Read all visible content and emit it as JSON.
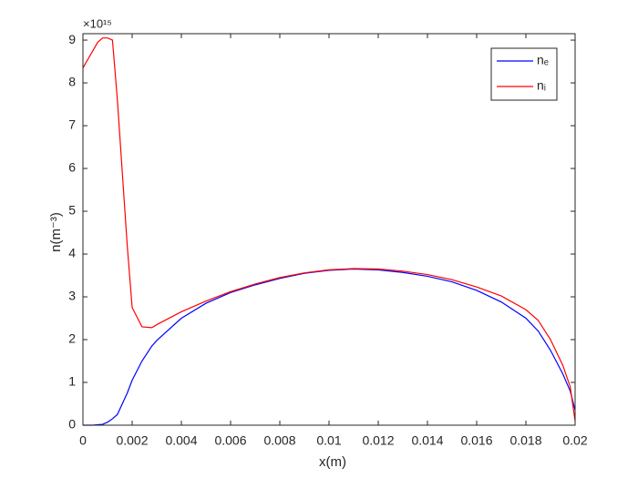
{
  "chart_data": {
    "type": "line",
    "xlabel": "x(m)",
    "ylabel": "n(m⁻³)",
    "y_multiplier": "×10¹⁵",
    "x": [
      0,
      0.0004,
      0.0006,
      0.0008,
      0.001,
      0.0012,
      0.0014,
      0.0018,
      0.002,
      0.0024,
      0.0028,
      0.003,
      0.004,
      0.005,
      0.006,
      0.007,
      0.008,
      0.009,
      0.01,
      0.011,
      0.012,
      0.013,
      0.014,
      0.015,
      0.016,
      0.017,
      0.018,
      0.0185,
      0.019,
      0.0195,
      0.0198,
      0.02
    ],
    "series": [
      {
        "name": "nₑ",
        "color": "#0000ff",
        "values": [
          0,
          0,
          0.01,
          0.02,
          0.07,
          0.15,
          0.25,
          0.75,
          1.05,
          1.5,
          1.85,
          1.98,
          2.5,
          2.85,
          3.1,
          3.28,
          3.43,
          3.55,
          3.62,
          3.65,
          3.63,
          3.57,
          3.48,
          3.35,
          3.15,
          2.88,
          2.5,
          2.2,
          1.75,
          1.2,
          0.8,
          0.35
        ]
      },
      {
        "name": "nᵢ",
        "color": "#ff0000",
        "values": [
          8.35,
          8.75,
          8.95,
          9.05,
          9.05,
          9.0,
          7.6,
          4.2,
          2.75,
          2.3,
          2.28,
          2.35,
          2.65,
          2.9,
          3.12,
          3.3,
          3.45,
          3.56,
          3.63,
          3.66,
          3.65,
          3.6,
          3.52,
          3.4,
          3.23,
          3.02,
          2.7,
          2.45,
          2.0,
          1.4,
          0.9,
          0.1
        ]
      }
    ],
    "xlim": [
      0,
      0.02
    ],
    "xticks": [
      0,
      0.002,
      0.004,
      0.006,
      0.008,
      0.01,
      0.012,
      0.014,
      0.016,
      0.018,
      0.02
    ],
    "ylim": [
      0,
      9.15
    ],
    "yticks": [
      0,
      1,
      2,
      3,
      4,
      5,
      6,
      7,
      8,
      9
    ],
    "grid": false,
    "legend": "top-right"
  }
}
